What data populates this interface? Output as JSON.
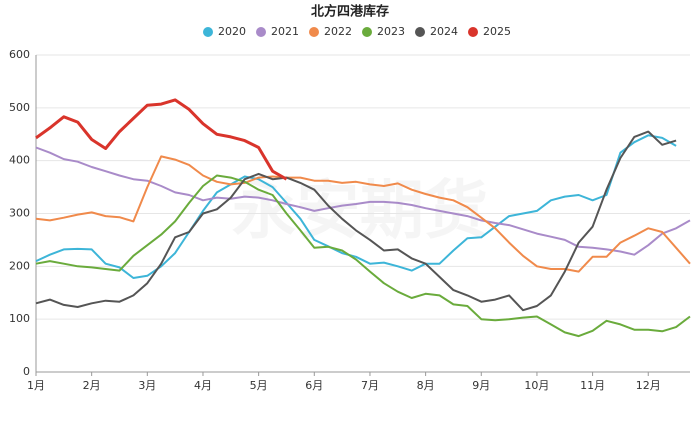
{
  "chart_data": {
    "type": "line",
    "title": "北方四港库存",
    "watermark": "永安期货",
    "categories": [
      "1月",
      null,
      null,
      null,
      "2月",
      null,
      null,
      null,
      "3月",
      null,
      null,
      null,
      "4月",
      null,
      null,
      null,
      "5月",
      null,
      null,
      null,
      "6月",
      null,
      null,
      null,
      "7月",
      null,
      null,
      null,
      "8月",
      null,
      null,
      null,
      "9月",
      null,
      null,
      null,
      "10月",
      null,
      null,
      null,
      "11月",
      null,
      null,
      null,
      "12月",
      null,
      null,
      null
    ],
    "ylim": [
      0,
      600
    ],
    "yticks": [
      0,
      100,
      200,
      300,
      400,
      500,
      600
    ],
    "grid": true,
    "series": [
      {
        "name": "2020",
        "color": "#3db5d8",
        "values": [
          210,
          222,
          232,
          233,
          232,
          205,
          198,
          178,
          182,
          200,
          225,
          265,
          305,
          340,
          355,
          370,
          365,
          350,
          320,
          290,
          250,
          238,
          225,
          218,
          205,
          207,
          200,
          192,
          205,
          205,
          230,
          253,
          255,
          275,
          295,
          300,
          305,
          325,
          332,
          335,
          325,
          335,
          415,
          435,
          448,
          443,
          428,
          null
        ]
      },
      {
        "name": "2021",
        "color": "#a98bc9",
        "values": [
          425,
          415,
          403,
          398,
          388,
          380,
          372,
          365,
          362,
          352,
          340,
          335,
          325,
          330,
          328,
          332,
          330,
          325,
          318,
          312,
          305,
          310,
          315,
          318,
          322,
          322,
          320,
          316,
          310,
          305,
          300,
          295,
          287,
          282,
          278,
          270,
          262,
          256,
          250,
          237,
          235,
          232,
          228,
          222,
          240,
          262,
          272,
          287
        ]
      },
      {
        "name": "2022",
        "color": "#f08a4b",
        "values": [
          290,
          287,
          292,
          298,
          302,
          295,
          293,
          285,
          350,
          408,
          402,
          392,
          372,
          360,
          355,
          358,
          368,
          370,
          368,
          368,
          362,
          362,
          358,
          360,
          355,
          352,
          357,
          345,
          337,
          330,
          325,
          312,
          292,
          272,
          245,
          220,
          200,
          195,
          195,
          190,
          218,
          218,
          245,
          258,
          272,
          265,
          235,
          205
        ]
      },
      {
        "name": "2023",
        "color": "#6aab3c",
        "values": [
          205,
          210,
          205,
          200,
          198,
          195,
          192,
          220,
          240,
          260,
          285,
          320,
          352,
          372,
          368,
          360,
          345,
          335,
          300,
          268,
          235,
          237,
          230,
          213,
          190,
          168,
          152,
          140,
          148,
          145,
          128,
          125,
          100,
          98,
          100,
          103,
          105,
          90,
          75,
          68,
          78,
          97,
          90,
          80,
          80,
          77,
          85,
          105
        ]
      },
      {
        "name": "2024",
        "color": "#555555",
        "values": [
          130,
          137,
          127,
          123,
          130,
          135,
          133,
          145,
          168,
          205,
          255,
          265,
          300,
          308,
          330,
          365,
          375,
          365,
          368,
          358,
          345,
          315,
          290,
          268,
          250,
          230,
          232,
          215,
          205,
          180,
          155,
          145,
          133,
          137,
          145,
          117,
          125,
          145,
          190,
          245,
          275,
          345,
          405,
          445,
          455,
          430,
          438,
          null
        ]
      },
      {
        "name": "2025",
        "color": "#d9342b",
        "values": [
          443,
          462,
          483,
          473,
          440,
          423,
          455,
          480,
          505,
          507,
          515,
          497,
          470,
          450,
          445,
          438,
          425,
          380,
          365,
          null,
          null,
          null,
          null,
          null,
          null,
          null,
          null,
          null,
          null,
          null,
          null,
          null,
          null,
          null,
          null,
          null,
          null,
          null,
          null,
          null,
          null,
          null,
          null,
          null,
          null,
          null,
          null,
          null
        ]
      }
    ]
  }
}
